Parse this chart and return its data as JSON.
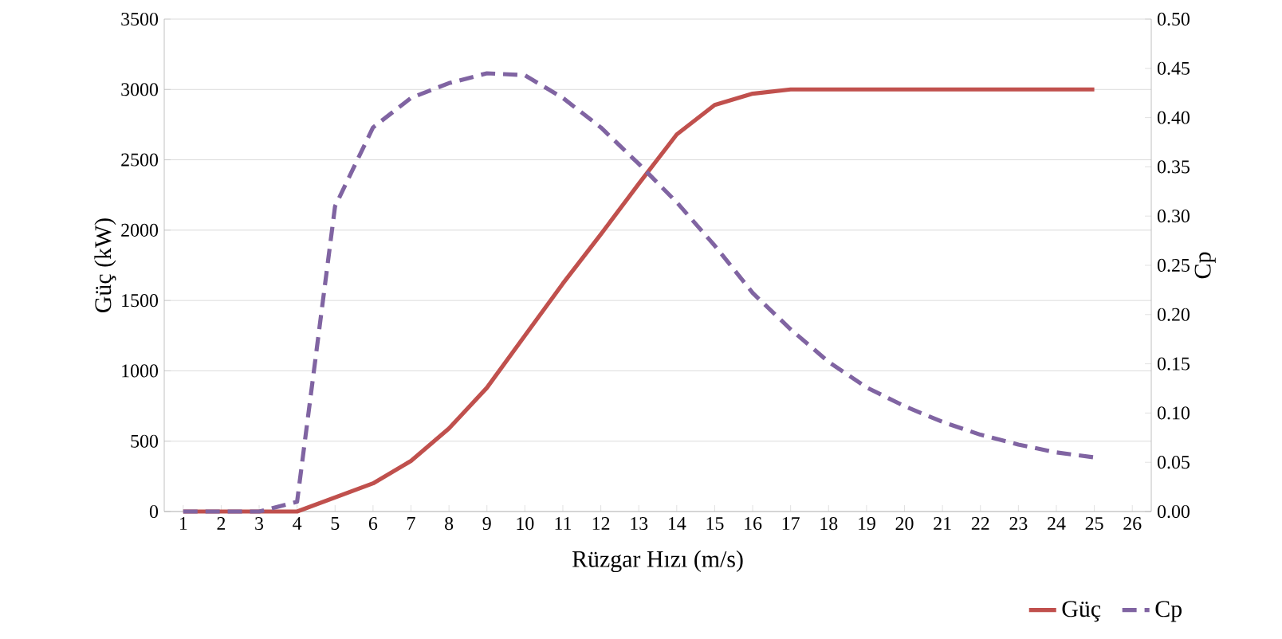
{
  "chart_data": {
    "type": "line",
    "xlabel": "Rüzgar Hızı (m/s)",
    "ylabel": "Güç (kW)",
    "y2label": "Cp",
    "x": [
      1,
      2,
      3,
      4,
      5,
      6,
      7,
      8,
      9,
      10,
      11,
      12,
      13,
      14,
      15,
      16,
      17,
      18,
      19,
      20,
      21,
      22,
      23,
      24,
      25
    ],
    "xlim": [
      0.5,
      26.5
    ],
    "xticks": [
      1,
      2,
      3,
      4,
      5,
      6,
      7,
      8,
      9,
      10,
      11,
      12,
      13,
      14,
      15,
      16,
      17,
      18,
      19,
      20,
      21,
      22,
      23,
      24,
      25,
      26
    ],
    "ylim": [
      0,
      3500
    ],
    "yticks": [
      0,
      500,
      1000,
      1500,
      2000,
      2500,
      3000,
      3500
    ],
    "y2lim": [
      0,
      0.5
    ],
    "y2ticks": [
      {
        "value": 0,
        "label": "0.00"
      },
      {
        "value": 0.05,
        "label": "0.05"
      },
      {
        "value": 0.1,
        "label": "0.10"
      },
      {
        "value": 0.15,
        "label": "0.15"
      },
      {
        "value": 0.2,
        "label": "0.20"
      },
      {
        "value": 0.25,
        "label": "0.25"
      },
      {
        "value": 0.3,
        "label": "0.30"
      },
      {
        "value": 0.35,
        "label": "0.35"
      },
      {
        "value": 0.4,
        "label": "0.40"
      },
      {
        "value": 0.45,
        "label": "0.45"
      },
      {
        "value": 0.5,
        "label": "0.50"
      }
    ],
    "grid": "y",
    "legend": "bottom right",
    "marker": "none",
    "series": [
      {
        "name": "Güç",
        "color": "#c0504d",
        "line_style": "solid",
        "values": [
          0,
          0,
          0,
          0,
          100,
          200,
          360,
          590,
          880,
          1250,
          1620,
          1970,
          2330,
          2680,
          2890,
          2970,
          3000,
          3000,
          3000,
          3000,
          3000,
          3000,
          3000,
          3000,
          3000
        ]
      },
      {
        "name": "Cp",
        "color": "#8064a2",
        "axis": "y2",
        "line_style": "dashed",
        "values": [
          0,
          0,
          0,
          0.01,
          0.31,
          0.39,
          0.42,
          0.435,
          0.445,
          0.443,
          0.42,
          0.39,
          0.353,
          0.314,
          0.27,
          0.222,
          0.185,
          0.152,
          0.126,
          0.107,
          0.091,
          0.078,
          0.068,
          0.06,
          0.055
        ]
      }
    ]
  }
}
